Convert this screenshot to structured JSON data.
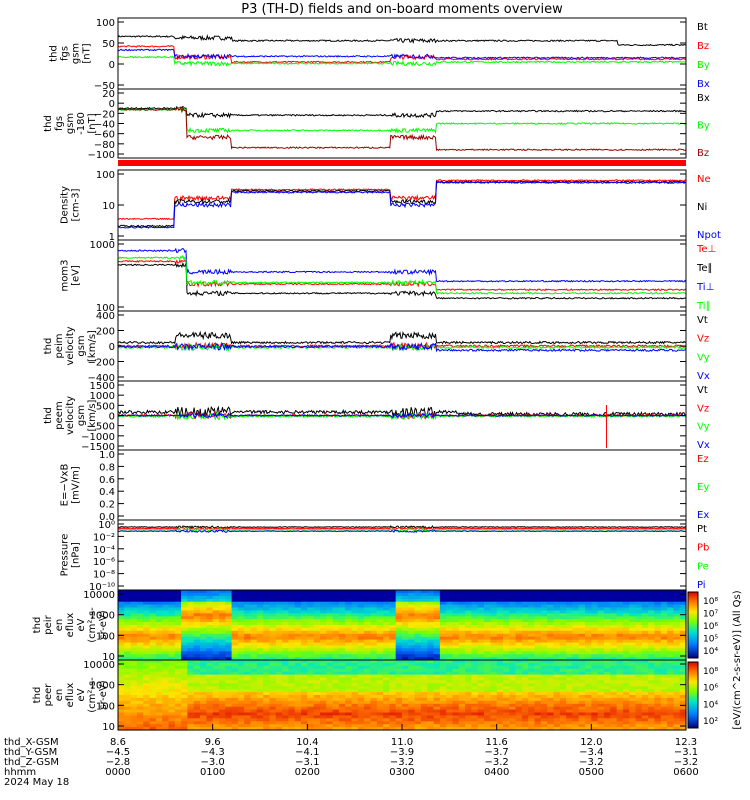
{
  "title": "P3 (TH-D) fields and on-board moments overview",
  "colors": {
    "black": "#000000",
    "red": "#ff0000",
    "green": "#00ff00",
    "blue": "#0000ff",
    "darkred": "#990000",
    "purple": "#800080"
  },
  "chart_data": [
    {
      "type": "line",
      "ylabel": [
        "thd",
        "fgs",
        "gsm",
        "[nT]"
      ],
      "yticks": [
        "100",
        "50",
        "0",
        "−50"
      ],
      "legend": [
        {
          "label": "Bt",
          "color": "black"
        },
        {
          "label": "Bz",
          "color": "red"
        },
        {
          "label": "By",
          "color": "green"
        },
        {
          "label": "Bx",
          "color": "blue"
        }
      ],
      "ylim": [
        -100,
        100
      ]
    },
    {
      "type": "line",
      "ylabel": [
        "thd",
        "fgs",
        "gsm",
        "-180",
        "[nT]"
      ],
      "yticks": [
        "20",
        "0",
        "−20",
        "−40",
        "−60",
        "−80",
        "−100"
      ],
      "legend": [
        {
          "label": "Bx",
          "color": "black"
        },
        {
          "label": "By",
          "color": "green"
        },
        {
          "label": "Bz",
          "color": "darkred"
        }
      ],
      "ylim": [
        -110,
        25
      ]
    },
    {
      "type": "line",
      "ylabel": [
        "Density",
        "[cm-3]"
      ],
      "yticks": [
        "100",
        "10",
        "1"
      ],
      "legend": [
        {
          "label": "Ne",
          "color": "red"
        },
        {
          "label": "Ni",
          "color": "black"
        },
        {
          "label": "Npot",
          "color": "blue"
        }
      ],
      "log": true
    },
    {
      "type": "line",
      "ylabel": [
        "mom3",
        "[eV]"
      ],
      "yticks": [
        "1000",
        "100"
      ],
      "legend": [
        {
          "label": "Te⊥",
          "color": "red"
        },
        {
          "label": "Te∥",
          "color": "black"
        },
        {
          "label": "Ti⊥",
          "color": "blue"
        },
        {
          "label": "Ti∥",
          "color": "green"
        }
      ],
      "log": true
    },
    {
      "type": "line",
      "ylabel": [
        "thd",
        "peim",
        "velocity",
        "gsm",
        "[km/s]"
      ],
      "yticks": [
        "400",
        "200",
        "0",
        "−200",
        "−400"
      ],
      "legend": [
        {
          "label": "Vt",
          "color": "black"
        },
        {
          "label": "Vz",
          "color": "red"
        },
        {
          "label": "Vy",
          "color": "green"
        },
        {
          "label": "Vx",
          "color": "blue"
        }
      ],
      "ylim": [
        -400,
        400
      ]
    },
    {
      "type": "line",
      "ylabel": [
        "thd",
        "peem",
        "velocity",
        "gsm",
        "[km/s]"
      ],
      "yticks": [
        "1500",
        "1000",
        "500",
        "0",
        "−500",
        "−1000",
        "−1500"
      ],
      "legend": [
        {
          "label": "Vt",
          "color": "black"
        },
        {
          "label": "Vz",
          "color": "red"
        },
        {
          "label": "Vy",
          "color": "green"
        },
        {
          "label": "Vx",
          "color": "blue"
        }
      ],
      "ylim": [
        -1500,
        1500
      ]
    },
    {
      "type": "line",
      "ylabel": [
        "E=−VxB",
        "[mV/m]"
      ],
      "yticks": [
        "1.0",
        "0.8",
        "0.6",
        "0.4",
        "0.2",
        "0.0"
      ],
      "legend": [
        {
          "label": "Ez",
          "color": "red"
        },
        {
          "label": "Ey",
          "color": "green"
        },
        {
          "label": "Ex",
          "color": "blue"
        }
      ],
      "ylim": [
        0,
        1
      ]
    },
    {
      "type": "line",
      "ylabel": [
        "Pressure",
        "[nPa]"
      ],
      "yticks": [
        "10⁰",
        "10⁻²",
        "10⁻⁴",
        "10⁻⁶",
        "10⁻⁸",
        "10⁻¹⁰"
      ],
      "legend": [
        {
          "label": "Pt",
          "color": "black"
        },
        {
          "label": "Pb",
          "color": "red"
        },
        {
          "label": "Pe",
          "color": "green"
        },
        {
          "label": "Pi",
          "color": "blue"
        }
      ],
      "log": true
    },
    {
      "type": "heatmap",
      "ylabel": [
        "thd",
        "peir",
        "en",
        "eflux",
        "eV",
        "(cm²-s-",
        "sr-eV)"
      ],
      "yticks": [
        "10000",
        "1000",
        "100",
        "10"
      ],
      "cticks": [
        "10⁸",
        "10⁷",
        "10⁶",
        "10⁵",
        "10⁴"
      ]
    },
    {
      "type": "heatmap",
      "ylabel": [
        "thd",
        "peer",
        "en",
        "eflux",
        "eV",
        "(cm²-s-",
        "sr-eV)"
      ],
      "yticks": [
        "10000",
        "1000",
        "100",
        "10"
      ],
      "cticks": [
        "10⁸",
        "10⁶",
        "10⁴",
        "10²"
      ]
    }
  ],
  "colorbar_label": "[eV/(cm^2-s-sr-eV)] (All Qs)",
  "xaxis": {
    "row_labels": [
      "thd_X-GSM",
      "thd_Y-GSM",
      "thd_Z-GSM",
      "hhmm",
      "2024 May 18"
    ],
    "ticks": [
      {
        "x": "8.6",
        "y": "−4.5",
        "z": "−2.8",
        "t": "0000"
      },
      {
        "x": "9.6",
        "y": "−4.3",
        "z": "−3.0",
        "t": "0100"
      },
      {
        "x": "10.4",
        "y": "−4.1",
        "z": "−3.1",
        "t": "0200"
      },
      {
        "x": "11.0",
        "y": "−3.9",
        "z": "−3.2",
        "t": "0300"
      },
      {
        "x": "11.6",
        "y": "−3.7",
        "z": "−3.2",
        "t": "0400"
      },
      {
        "x": "12.0",
        "y": "−3.4",
        "z": "−3.2",
        "t": "0500"
      },
      {
        "x": "12.3",
        "y": "−3.1",
        "z": "−3.2",
        "t": "0600"
      }
    ]
  }
}
